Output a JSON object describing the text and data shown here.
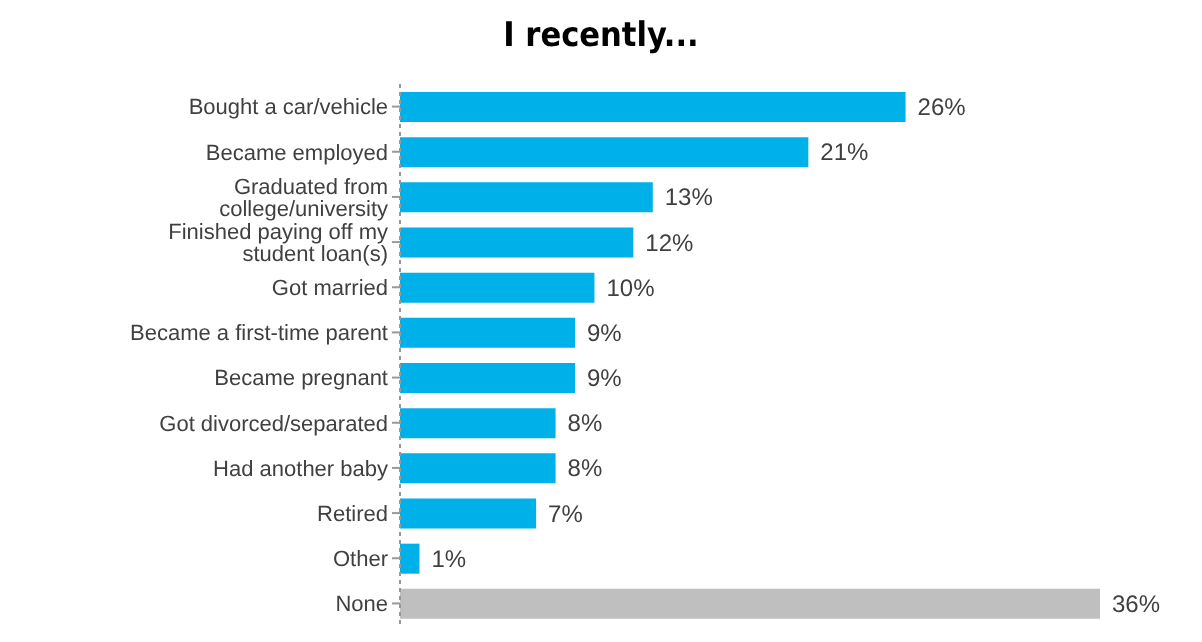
{
  "chart_data": {
    "type": "bar",
    "orientation": "horizontal",
    "title": "I recently...",
    "categories": [
      "Bought a car/vehicle",
      "Became employed",
      "Graduated from college/university",
      "Finished paying off my student loan(s)",
      "Got married",
      "Became a first-time parent",
      "Became pregnant",
      "Got divorced/separated",
      "Had another baby",
      "Retired",
      "Other",
      "None"
    ],
    "values": [
      26,
      21,
      13,
      12,
      10,
      9,
      9,
      8,
      8,
      7,
      1,
      36
    ],
    "value_labels": [
      "26%",
      "21%",
      "13%",
      "12%",
      "10%",
      "9%",
      "9%",
      "8%",
      "8%",
      "7%",
      "1%",
      "36%"
    ],
    "colors": [
      "#00b0e8",
      "#00b0e8",
      "#00b0e8",
      "#00b0e8",
      "#00b0e8",
      "#00b0e8",
      "#00b0e8",
      "#00b0e8",
      "#00b0e8",
      "#00b0e8",
      "#00b0e8",
      "#bfbfbf"
    ],
    "grid": false,
    "legend": false
  }
}
